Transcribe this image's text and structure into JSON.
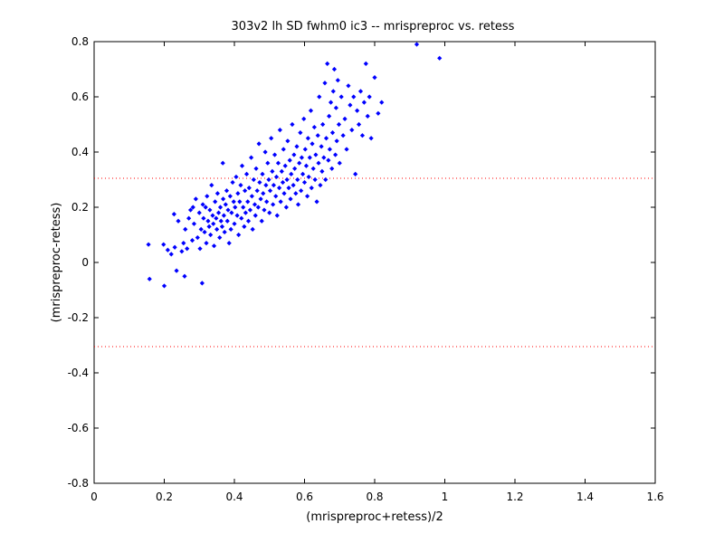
{
  "chart_data": {
    "type": "scatter",
    "title": "303v2 lh SD fwhm0 ic3 -- mrispreproc vs. retess",
    "xlabel": "(mrispreproc+retess)/2",
    "ylabel": "(mrispreproc-retess)",
    "xlim": [
      0,
      1.6
    ],
    "ylim": [
      -0.8,
      0.8
    ],
    "xticks": [
      0,
      0.2,
      0.4,
      0.6,
      0.8,
      1,
      1.2,
      1.4,
      1.6
    ],
    "yticks": [
      -0.8,
      -0.6,
      -0.4,
      -0.2,
      0,
      0.2,
      0.4,
      0.6,
      0.8
    ],
    "xtick_labels": [
      "0",
      "0.2",
      "0.4",
      "0.6",
      "0.8",
      "1",
      "1.2",
      "1.4",
      "1.6"
    ],
    "ytick_labels": [
      "-0.8",
      "-0.6",
      "-0.4",
      "-0.2",
      "0",
      "0.2",
      "0.4",
      "0.6",
      "0.8"
    ],
    "grid": false,
    "marker_color": "#0000ff",
    "reference_line_color": "#ff0000",
    "reference_lines_y": [
      0.305,
      -0.305
    ],
    "series": [
      {
        "points": [
          [
            0.155,
            0.065
          ],
          [
            0.158,
            -0.06
          ],
          [
            0.2,
            -0.085
          ],
          [
            0.198,
            0.065
          ],
          [
            0.21,
            0.045
          ],
          [
            0.22,
            0.03
          ],
          [
            0.228,
            0.175
          ],
          [
            0.23,
            0.055
          ],
          [
            0.235,
            -0.03
          ],
          [
            0.24,
            0.15
          ],
          [
            0.25,
            0.04
          ],
          [
            0.255,
            0.07
          ],
          [
            0.258,
            -0.05
          ],
          [
            0.26,
            0.12
          ],
          [
            0.265,
            0.05
          ],
          [
            0.27,
            0.16
          ],
          [
            0.275,
            0.19
          ],
          [
            0.28,
            0.08
          ],
          [
            0.282,
            0.2
          ],
          [
            0.285,
            0.14
          ],
          [
            0.29,
            0.23
          ],
          [
            0.295,
            0.09
          ],
          [
            0.3,
            0.18
          ],
          [
            0.302,
            0.05
          ],
          [
            0.305,
            0.12
          ],
          [
            0.308,
            -0.075
          ],
          [
            0.31,
            0.21
          ],
          [
            0.312,
            0.16
          ],
          [
            0.315,
            0.11
          ],
          [
            0.318,
            0.2
          ],
          [
            0.32,
            0.07
          ],
          [
            0.322,
            0.24
          ],
          [
            0.325,
            0.15
          ],
          [
            0.328,
            0.13
          ],
          [
            0.33,
            0.19
          ],
          [
            0.332,
            0.1
          ],
          [
            0.335,
            0.28
          ],
          [
            0.338,
            0.17
          ],
          [
            0.34,
            0.14
          ],
          [
            0.342,
            0.06
          ],
          [
            0.345,
            0.22
          ],
          [
            0.348,
            0.16
          ],
          [
            0.35,
            0.12
          ],
          [
            0.352,
            0.25
          ],
          [
            0.355,
            0.18
          ],
          [
            0.358,
            0.09
          ],
          [
            0.36,
            0.2
          ],
          [
            0.362,
            0.15
          ],
          [
            0.365,
            0.13
          ],
          [
            0.367,
            0.36
          ],
          [
            0.368,
            0.23
          ],
          [
            0.37,
            0.17
          ],
          [
            0.372,
            0.11
          ],
          [
            0.375,
            0.21
          ],
          [
            0.378,
            0.26
          ],
          [
            0.38,
            0.15
          ],
          [
            0.382,
            0.19
          ],
          [
            0.385,
            0.07
          ],
          [
            0.388,
            0.24
          ],
          [
            0.39,
            0.12
          ],
          [
            0.392,
            0.18
          ],
          [
            0.395,
            0.29
          ],
          [
            0.398,
            0.22
          ],
          [
            0.4,
            0.14
          ],
          [
            0.402,
            0.2
          ],
          [
            0.405,
            0.31
          ],
          [
            0.408,
            0.17
          ],
          [
            0.41,
            0.25
          ],
          [
            0.412,
            0.1
          ],
          [
            0.415,
            0.22
          ],
          [
            0.418,
            0.28
          ],
          [
            0.42,
            0.16
          ],
          [
            0.422,
            0.35
          ],
          [
            0.425,
            0.2
          ],
          [
            0.428,
            0.13
          ],
          [
            0.43,
            0.26
          ],
          [
            0.432,
            0.18
          ],
          [
            0.435,
            0.32
          ],
          [
            0.438,
            0.22
          ],
          [
            0.44,
            0.15
          ],
          [
            0.442,
            0.27
          ],
          [
            0.445,
            0.19
          ],
          [
            0.448,
            0.38
          ],
          [
            0.45,
            0.24
          ],
          [
            0.452,
            0.12
          ],
          [
            0.455,
            0.3
          ],
          [
            0.458,
            0.21
          ],
          [
            0.46,
            0.17
          ],
          [
            0.462,
            0.34
          ],
          [
            0.465,
            0.26
          ],
          [
            0.468,
            0.2
          ],
          [
            0.47,
            0.43
          ],
          [
            0.472,
            0.29
          ],
          [
            0.475,
            0.23
          ],
          [
            0.478,
            0.15
          ],
          [
            0.48,
            0.32
          ],
          [
            0.482,
            0.25
          ],
          [
            0.485,
            0.19
          ],
          [
            0.488,
            0.4
          ],
          [
            0.49,
            0.28
          ],
          [
            0.492,
            0.22
          ],
          [
            0.495,
            0.36
          ],
          [
            0.498,
            0.3
          ],
          [
            0.5,
            0.18
          ],
          [
            0.502,
            0.26
          ],
          [
            0.505,
            0.45
          ],
          [
            0.508,
            0.33
          ],
          [
            0.51,
            0.21
          ],
          [
            0.512,
            0.28
          ],
          [
            0.515,
            0.39
          ],
          [
            0.518,
            0.24
          ],
          [
            0.52,
            0.31
          ],
          [
            0.522,
            0.17
          ],
          [
            0.525,
            0.36
          ],
          [
            0.528,
            0.27
          ],
          [
            0.53,
            0.48
          ],
          [
            0.532,
            0.22
          ],
          [
            0.535,
            0.33
          ],
          [
            0.538,
            0.29
          ],
          [
            0.54,
            0.41
          ],
          [
            0.542,
            0.25
          ],
          [
            0.545,
            0.35
          ],
          [
            0.548,
            0.2
          ],
          [
            0.55,
            0.3
          ],
          [
            0.552,
            0.44
          ],
          [
            0.555,
            0.27
          ],
          [
            0.558,
            0.37
          ],
          [
            0.56,
            0.23
          ],
          [
            0.562,
            0.32
          ],
          [
            0.565,
            0.5
          ],
          [
            0.568,
            0.28
          ],
          [
            0.57,
            0.39
          ],
          [
            0.572,
            0.34
          ],
          [
            0.575,
            0.25
          ],
          [
            0.578,
            0.42
          ],
          [
            0.58,
            0.3
          ],
          [
            0.582,
            0.21
          ],
          [
            0.585,
            0.36
          ],
          [
            0.588,
            0.47
          ],
          [
            0.59,
            0.26
          ],
          [
            0.592,
            0.38
          ],
          [
            0.595,
            0.32
          ],
          [
            0.598,
            0.52
          ],
          [
            0.6,
            0.29
          ],
          [
            0.602,
            0.41
          ],
          [
            0.605,
            0.35
          ],
          [
            0.608,
            0.24
          ],
          [
            0.61,
            0.45
          ],
          [
            0.612,
            0.31
          ],
          [
            0.615,
            0.38
          ],
          [
            0.618,
            0.55
          ],
          [
            0.62,
            0.27
          ],
          [
            0.622,
            0.43
          ],
          [
            0.625,
            0.34
          ],
          [
            0.628,
            0.49
          ],
          [
            0.63,
            0.3
          ],
          [
            0.632,
            0.39
          ],
          [
            0.635,
            0.22
          ],
          [
            0.638,
            0.46
          ],
          [
            0.64,
            0.36
          ],
          [
            0.642,
            0.6
          ],
          [
            0.645,
            0.28
          ],
          [
            0.648,
            0.42
          ],
          [
            0.65,
            0.33
          ],
          [
            0.652,
            0.5
          ],
          [
            0.655,
            0.38
          ],
          [
            0.658,
            0.65
          ],
          [
            0.66,
            0.3
          ],
          [
            0.662,
            0.45
          ],
          [
            0.665,
            0.72
          ],
          [
            0.668,
            0.37
          ],
          [
            0.67,
            0.53
          ],
          [
            0.672,
            0.41
          ],
          [
            0.675,
            0.58
          ],
          [
            0.678,
            0.34
          ],
          [
            0.68,
            0.47
          ],
          [
            0.682,
            0.62
          ],
          [
            0.685,
            0.7
          ],
          [
            0.688,
            0.39
          ],
          [
            0.69,
            0.56
          ],
          [
            0.692,
            0.44
          ],
          [
            0.695,
            0.66
          ],
          [
            0.698,
            0.5
          ],
          [
            0.7,
            0.36
          ],
          [
            0.705,
            0.6
          ],
          [
            0.71,
            0.46
          ],
          [
            0.715,
            0.52
          ],
          [
            0.72,
            0.41
          ],
          [
            0.725,
            0.64
          ],
          [
            0.73,
            0.57
          ],
          [
            0.735,
            0.48
          ],
          [
            0.74,
            0.6
          ],
          [
            0.745,
            0.32
          ],
          [
            0.75,
            0.55
          ],
          [
            0.755,
            0.5
          ],
          [
            0.76,
            0.62
          ],
          [
            0.765,
            0.46
          ],
          [
            0.77,
            0.58
          ],
          [
            0.775,
            0.72
          ],
          [
            0.78,
            0.53
          ],
          [
            0.785,
            0.6
          ],
          [
            0.79,
            0.45
          ],
          [
            0.8,
            0.67
          ],
          [
            0.81,
            0.54
          ],
          [
            0.82,
            0.58
          ],
          [
            0.92,
            0.79
          ],
          [
            0.985,
            0.74
          ]
        ]
      }
    ]
  }
}
